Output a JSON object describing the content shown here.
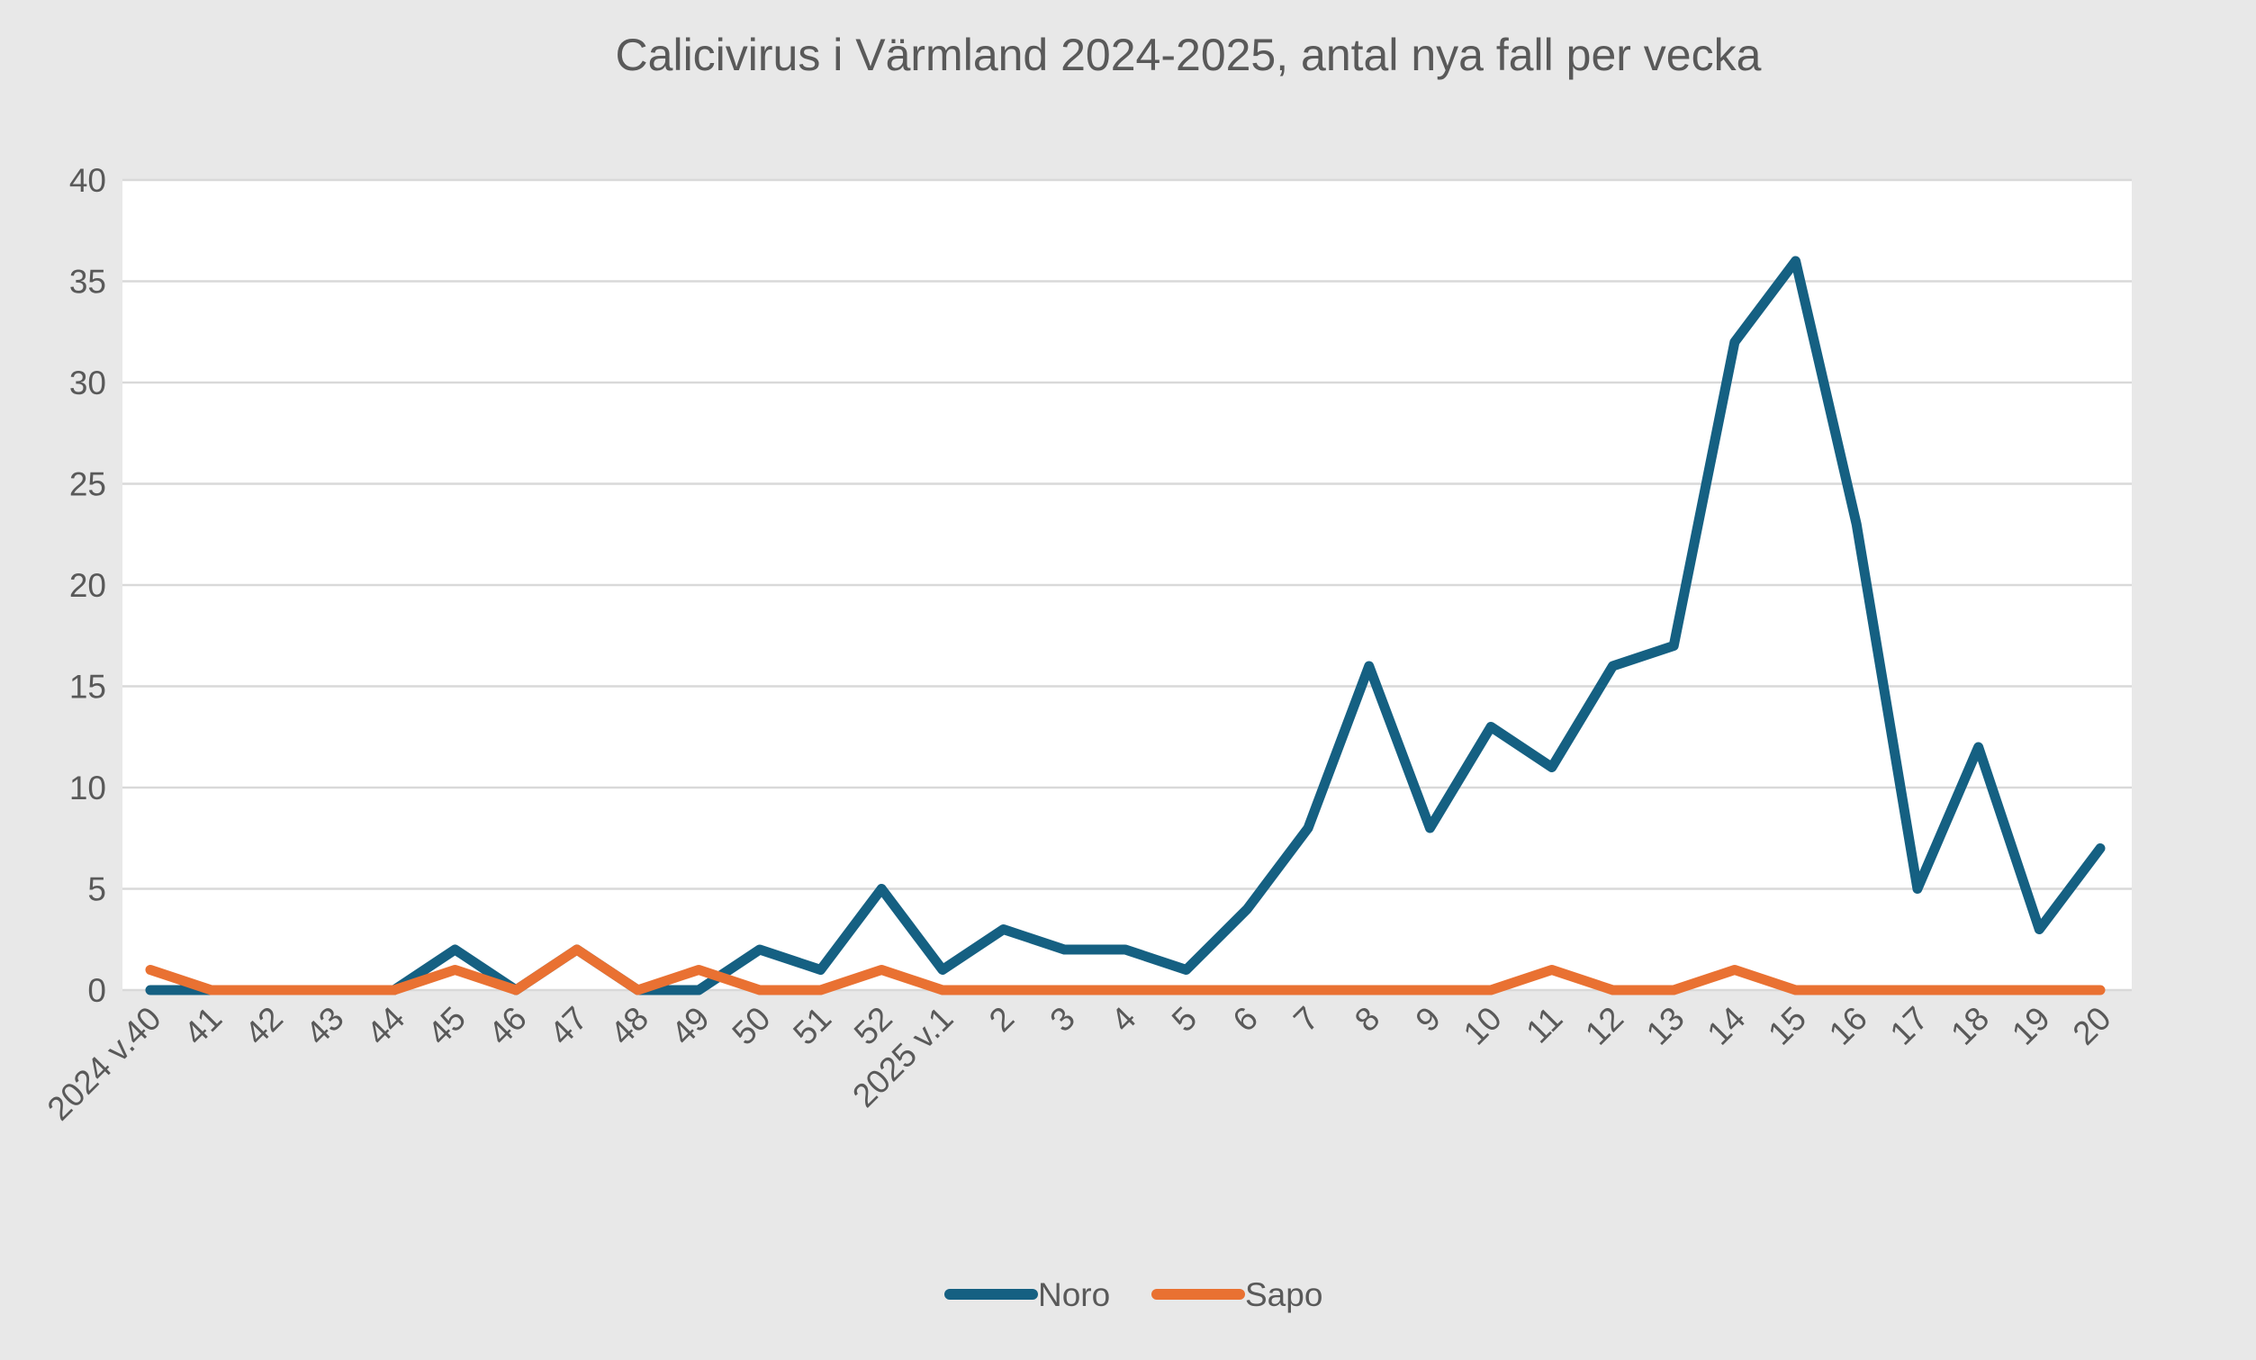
{
  "chart_data": {
    "type": "line",
    "title": "Calicivirus i Värmland 2024-2025, antal nya fall per vecka",
    "xlabel": "",
    "ylabel": "",
    "ylim": [
      0,
      40
    ],
    "yticks": [
      0,
      5,
      10,
      15,
      20,
      25,
      30,
      35,
      40
    ],
    "grid": true,
    "legend_position": "bottom",
    "categories": [
      "2024 v.40",
      "41",
      "42",
      "43",
      "44",
      "45",
      "46",
      "47",
      "48",
      "49",
      "50",
      "51",
      "52",
      "2025 v.1",
      "2",
      "3",
      "4",
      "5",
      "6",
      "7",
      "8",
      "9",
      "10",
      "11",
      "12",
      "13",
      "14",
      "15",
      "16",
      "17",
      "18",
      "19",
      "20"
    ],
    "series": [
      {
        "name": "Noro",
        "color": "#156082",
        "values": [
          0,
          0,
          0,
          0,
          0,
          2,
          0,
          2,
          0,
          0,
          2,
          1,
          5,
          1,
          3,
          2,
          2,
          1,
          4,
          8,
          16,
          8,
          13,
          11,
          16,
          17,
          32,
          36,
          23,
          5,
          12,
          3,
          7
        ]
      },
      {
        "name": "Sapo",
        "color": "#E97132",
        "values": [
          1,
          0,
          0,
          0,
          0,
          1,
          0,
          2,
          0,
          1,
          0,
          0,
          1,
          0,
          0,
          0,
          0,
          0,
          0,
          0,
          0,
          0,
          0,
          1,
          0,
          0,
          1,
          0,
          0,
          0,
          0,
          0,
          0
        ]
      }
    ],
    "colors": {
      "background": "#E8E8E8",
      "plot_background": "#FFFFFF",
      "gridline": "#D9D9D9",
      "text": "#595959"
    }
  }
}
